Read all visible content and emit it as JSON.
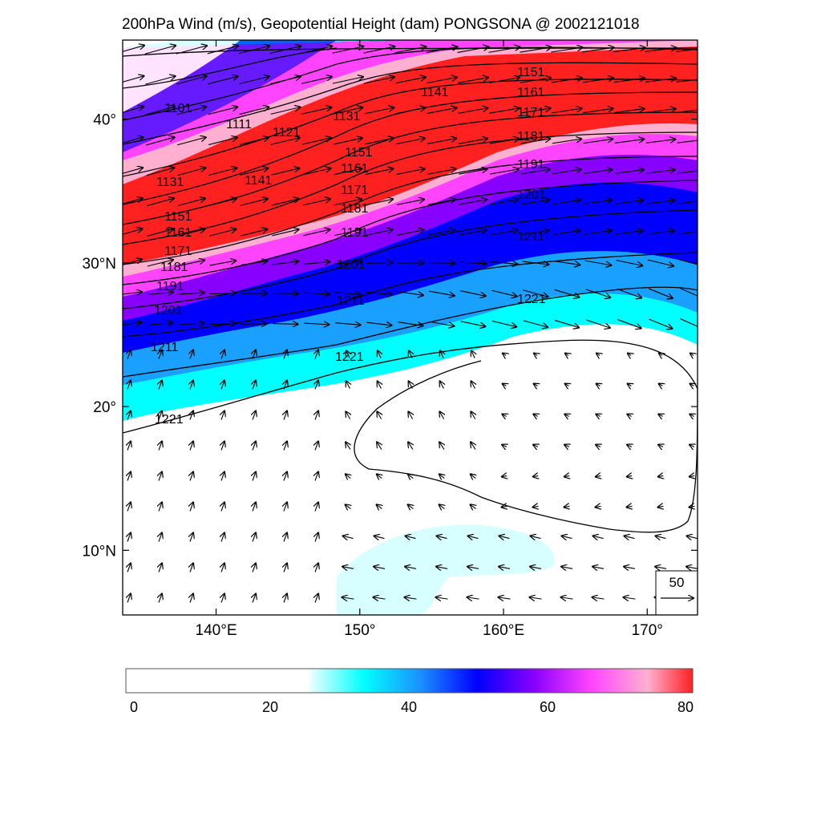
{
  "title": "200hPa Wind (m/s), Geopotential Height (dam) PONGSONA @ 2002121018",
  "map": {
    "lon_range": [
      133.5,
      173.5
    ],
    "lat_range": [
      5.5,
      45.5
    ],
    "x_ticks": [
      {
        "value": 140,
        "label": "140°E"
      },
      {
        "value": 150,
        "label": "150°"
      },
      {
        "value": 160,
        "label": "160°E"
      },
      {
        "value": 170,
        "label": "170°"
      }
    ],
    "y_ticks": [
      {
        "value": 40,
        "label": "40°"
      },
      {
        "value": 30,
        "label": "30°N"
      },
      {
        "value": 20,
        "label": "20°"
      },
      {
        "value": 10,
        "label": "10°N"
      }
    ],
    "contours": [
      "1101",
      "1111",
      "1121",
      "1131",
      "1141",
      "1151",
      "1161",
      "1171",
      "1181",
      "1191",
      "1201",
      "1211",
      "1221"
    ],
    "reference_vector": {
      "label": "50",
      "units": "m/s"
    }
  },
  "colorbar": {
    "min": 0,
    "max": 80,
    "labels": [
      "0",
      "20",
      "40",
      "60",
      "80"
    ],
    "colors": {
      "low": "#ffffff",
      "cyan": "#00ffff",
      "blue": "#0000ff",
      "purple": "#8800ff",
      "magenta": "#ff44ff",
      "pink": "#ffb0d0",
      "red": "#ff2020"
    }
  }
}
